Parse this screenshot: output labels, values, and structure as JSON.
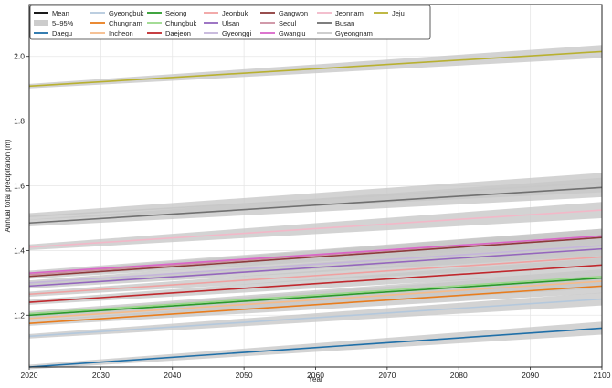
{
  "chart_data": {
    "type": "line",
    "xlabel": "Year",
    "ylabel": "Annual total precipitation (m)",
    "xlim": [
      2020,
      2100
    ],
    "ylim": [
      1.04,
      2.16
    ],
    "xticks": [
      2020,
      2030,
      2040,
      2050,
      2060,
      2070,
      2080,
      2090,
      2100
    ],
    "yticks": [
      1.2,
      1.4,
      1.6,
      1.8,
      2.0
    ],
    "ytick_labels": [
      "1.2",
      "1.4",
      "1.6",
      "1.8",
      "2.0"
    ],
    "grid": true,
    "legend_position": "top-left",
    "legend_entries": [
      {
        "label": "Mean",
        "kind": "line",
        "color": "#000000"
      },
      {
        "label": "5–95%",
        "kind": "band",
        "color": "#cccccc"
      }
    ],
    "band_color": "#c8c8c8",
    "series": [
      {
        "name": "Daegu",
        "color": "#1f6fa8",
        "start": 1.04,
        "end": 1.16,
        "band": 0.02
      },
      {
        "name": "Gyeongbuk",
        "color": "#b4c8dc",
        "start": 1.135,
        "end": 1.25,
        "band": 0.02
      },
      {
        "name": "Chungnam",
        "color": "#e87d1e",
        "start": 1.175,
        "end": 1.29,
        "band": 0.022
      },
      {
        "name": "Incheon",
        "color": "#f5bb8a",
        "start": 1.19,
        "end": 1.305,
        "band": 0.022
      },
      {
        "name": "Sejong",
        "color": "#2a9a2a",
        "start": 1.2,
        "end": 1.315,
        "band": 0.022
      },
      {
        "name": "Chungbuk",
        "color": "#9ad88a",
        "start": 1.205,
        "end": 1.32,
        "band": 0.022
      },
      {
        "name": "Daejeon",
        "color": "#c0282d",
        "start": 1.24,
        "end": 1.355,
        "band": 0.022
      },
      {
        "name": "Jeonbuk",
        "color": "#f0a0a0",
        "start": 1.265,
        "end": 1.38,
        "band": 0.022
      },
      {
        "name": "Ulsan",
        "color": "#9466bd",
        "start": 1.29,
        "end": 1.405,
        "band": 0.022
      },
      {
        "name": "Gyeonggi",
        "color": "#c5b5da",
        "start": 1.3,
        "end": 1.415,
        "band": 0.022
      },
      {
        "name": "Gangwon",
        "color": "#8c3a3a",
        "start": 1.32,
        "end": 1.44,
        "band": 0.022
      },
      {
        "name": "Seoul",
        "color": "#cc8fa0",
        "start": 1.325,
        "end": 1.445,
        "band": 0.022
      },
      {
        "name": "Gwangju",
        "color": "#d966c8",
        "start": 1.33,
        "end": 1.445,
        "band": 0.022
      },
      {
        "name": "Jeonnam",
        "color": "#f2b8c8",
        "start": 1.41,
        "end": 1.525,
        "band": 0.025
      },
      {
        "name": "Busan",
        "color": "#707070",
        "start": 1.485,
        "end": 1.595,
        "band": 0.03
      },
      {
        "name": "Gyeongnam",
        "color": "#c8c8c8",
        "start": 1.505,
        "end": 1.61,
        "band": 0.03
      },
      {
        "name": "Jeju",
        "color": "#b8b030",
        "start": 1.908,
        "end": 2.015,
        "band": 0.02
      }
    ]
  }
}
